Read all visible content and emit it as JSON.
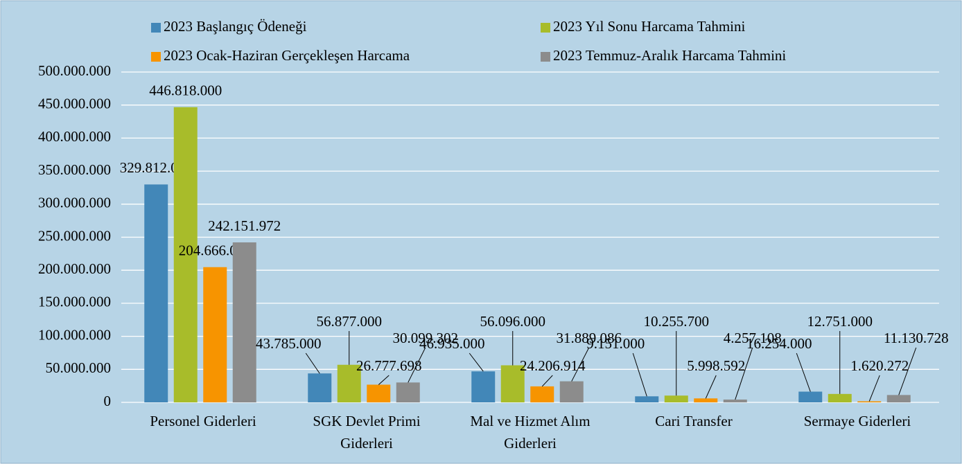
{
  "chart_data": {
    "type": "bar",
    "categories": [
      "Personel Giderleri",
      "SGK Devlet Primi Giderleri",
      "Mal ve Hizmet Alım Giderleri",
      "Cari Transfer",
      "Sermaye Giderleri"
    ],
    "series": [
      {
        "name": "2023 Başlangıç Ödeneği",
        "color": "#4287b8",
        "values": [
          329812000,
          43785000,
          46935000,
          9151000,
          16254000
        ],
        "value_labels": [
          "329.812.000",
          "43.785.000",
          "46.935.000",
          "9.151.000",
          "16.254.000"
        ]
      },
      {
        "name": "2023 Yıl Sonu Harcama Tahmini",
        "color": "#a8bc2a",
        "values": [
          446818000,
          56877000,
          56096000,
          10255700,
          12751000
        ],
        "value_labels": [
          "446.818.000",
          "56.877.000",
          "56.096.000",
          "10.255.700",
          "12.751.000"
        ]
      },
      {
        "name": "2023 Ocak-Haziran Gerçekleşen Harcama",
        "color": "#f79400",
        "values": [
          204666028,
          26777698,
          24206914,
          5998592,
          1620272
        ],
        "value_labels": [
          "204.666.028",
          "26.777.698",
          "24.206.914",
          "5.998.592",
          "1.620.272"
        ]
      },
      {
        "name": "2023 Temmuz-Aralık Harcama Tahmini",
        "color": "#8c8c8c",
        "values": [
          242151972,
          30099302,
          31889086,
          4257108,
          11130728
        ],
        "value_labels": [
          "242.151.972",
          "30.099.302",
          "31.889.086",
          "4.257.108",
          "11.130.728"
        ]
      }
    ],
    "ylim": [
      0,
      500000000
    ],
    "yticks": [
      0,
      {
        "value": 50000000,
        "label": "50.000.000"
      },
      {
        "value": 100000000,
        "label": "100.000.000"
      },
      {
        "value": 150000000,
        "label": "150.000.000"
      },
      {
        "value": 200000000,
        "label": "200.000.000"
      },
      {
        "value": 250000000,
        "label": "250.000.000"
      },
      {
        "value": 300000000,
        "label": "300.000.000"
      },
      {
        "value": 350000000,
        "label": "350.000.000"
      },
      {
        "value": 400000000,
        "label": "400.000.000"
      },
      {
        "value": 450000000,
        "label": "450.000.000"
      },
      {
        "value": 500000000,
        "label": "500.000.000"
      }
    ],
    "grid": true,
    "legend": "top"
  }
}
